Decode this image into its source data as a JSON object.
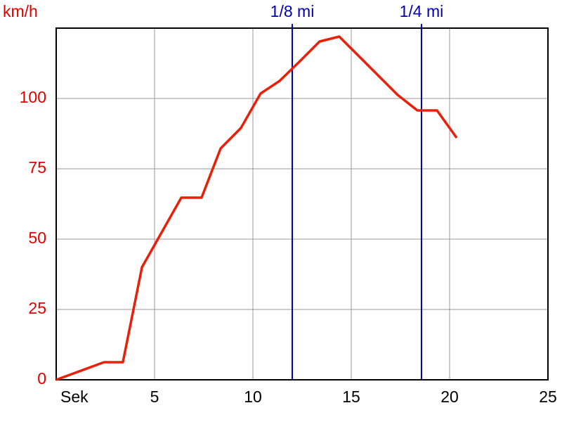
{
  "chart_data": {
    "type": "line",
    "y_label": "km/h",
    "x": [
      0,
      2.43,
      3.39,
      4.36,
      6.36,
      7.39,
      8.36,
      9.39,
      10.39,
      11.36,
      12.39,
      13.39,
      14.39,
      17.36,
      18.36,
      19.36,
      20.36
    ],
    "values": [
      0,
      6.25,
      6.25,
      40,
      64.75,
      64.75,
      82.25,
      89.5,
      101.75,
      106.25,
      113.25,
      120.25,
      122,
      101.25,
      95.75,
      95.75,
      86
    ],
    "color": "#e8200a",
    "xlim": [
      0,
      25
    ],
    "xticks": [
      {
        "value": 0,
        "label": "Sek"
      },
      5,
      10,
      15,
      20,
      25
    ],
    "ylim": [
      0,
      125
    ],
    "yticks": [
      0,
      25,
      50,
      75,
      100
    ],
    "grid": true,
    "markers": [
      {
        "value": 12,
        "label": "1/8 mi"
      },
      {
        "value": 18.57,
        "label": "1/4 mi"
      }
    ],
    "marker_color": "#0000b0",
    "y_tick_color": "#e00000"
  }
}
